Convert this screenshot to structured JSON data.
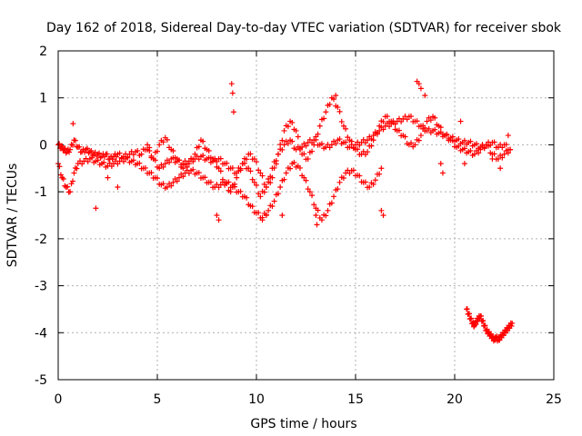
{
  "chart_data": {
    "type": "scatter",
    "title": "Day 162 of 2018, Sidereal Day-to-day VTEC variation (SDTVAR) for receiver sbok",
    "xlabel": "GPS time / hours",
    "ylabel": "SDTVAR / TECUs",
    "xlim": [
      0,
      25
    ],
    "ylim": [
      -5,
      2
    ],
    "xticks": [
      0,
      5,
      10,
      15,
      20,
      25
    ],
    "yticks": [
      -5,
      -4,
      -3,
      -2,
      -1,
      0,
      1,
      2
    ],
    "grid": true,
    "marker": "+",
    "color": "#ff0000",
    "series": [
      {
        "name": "main",
        "x": [
          0.0,
          0.15,
          0.3,
          0.45,
          0.6,
          0.8,
          1.0,
          1.2,
          1.4,
          1.6,
          1.8,
          2.0,
          2.2,
          2.4,
          2.6,
          2.8,
          3.0,
          3.3,
          3.6,
          3.9,
          4.2,
          4.5,
          4.8,
          5.1,
          5.4,
          5.7,
          6.0,
          6.3,
          6.6,
          6.9,
          7.2,
          7.5,
          7.8,
          8.1,
          8.4,
          8.7,
          9.0,
          9.3,
          9.6,
          9.9,
          10.2,
          10.5,
          10.8,
          11.1,
          11.4,
          11.7,
          12.0,
          12.3,
          12.6,
          12.9,
          13.2,
          13.5,
          13.8,
          14.1,
          14.4,
          14.7,
          15.0,
          15.3,
          15.6,
          15.9,
          16.2,
          16.5,
          16.8,
          17.1,
          17.4,
          17.7,
          18.0,
          18.3,
          18.6,
          18.9,
          19.2,
          19.5,
          19.8,
          20.1,
          20.4,
          20.7,
          21.0,
          21.3,
          21.6,
          21.9,
          22.2,
          22.5,
          22.8
        ],
        "y": [
          0.0,
          -0.05,
          -0.1,
          -0.15,
          -0.1,
          0.1,
          -0.05,
          -0.15,
          -0.1,
          -0.15,
          -0.2,
          -0.2,
          -0.25,
          -0.2,
          -0.3,
          -0.25,
          -0.2,
          -0.25,
          -0.2,
          -0.15,
          -0.2,
          0.0,
          -0.3,
          -0.5,
          -0.4,
          -0.3,
          -0.35,
          -0.4,
          -0.35,
          -0.3,
          -0.25,
          -0.3,
          -0.35,
          -0.3,
          -0.4,
          -0.5,
          -0.6,
          -0.4,
          -0.5,
          -0.8,
          -1.1,
          -0.9,
          -0.5,
          -0.2,
          0.0,
          0.1,
          -0.1,
          -0.05,
          0.05,
          0.1,
          0.0,
          -0.05,
          0.0,
          0.1,
          0.05,
          -0.05,
          0.0,
          0.05,
          0.1,
          0.2,
          0.3,
          0.4,
          0.45,
          0.5,
          0.55,
          0.6,
          0.5,
          0.4,
          0.3,
          0.3,
          0.25,
          0.2,
          0.15,
          0.1,
          0.05,
          0.05,
          0.0,
          -0.05,
          0.0,
          0.05,
          -0.05,
          0.0,
          -0.1
        ]
      },
      {
        "name": "lower-trace",
        "x": [
          0.0,
          0.2,
          0.4,
          0.6,
          0.8,
          1.0,
          1.3,
          1.6,
          1.9,
          2.2,
          2.5,
          2.8,
          3.1,
          3.4,
          3.7,
          4.0,
          4.3,
          4.6,
          4.9,
          5.2,
          5.5,
          5.8,
          6.1,
          6.4,
          6.7,
          7.0,
          7.3,
          7.6,
          7.9,
          8.2,
          8.5,
          8.8,
          9.1,
          9.4,
          9.7,
          10.0,
          10.3,
          10.6,
          10.9,
          11.2,
          11.5,
          11.8,
          12.1,
          12.4,
          12.7,
          13.0,
          13.3,
          13.6,
          13.9,
          14.2,
          14.5,
          14.8,
          15.1,
          15.4,
          15.7,
          16.0,
          16.3
        ],
        "y": [
          -0.4,
          -0.7,
          -0.9,
          -1.0,
          -0.6,
          -0.4,
          -0.35,
          -0.3,
          -0.35,
          -0.4,
          -0.45,
          -0.4,
          -0.35,
          -0.3,
          -0.35,
          -0.4,
          -0.5,
          -0.6,
          -0.7,
          -0.85,
          -0.9,
          -0.8,
          -0.7,
          -0.6,
          -0.55,
          -0.6,
          -0.7,
          -0.8,
          -0.9,
          -0.85,
          -0.8,
          -0.9,
          -1.0,
          -1.1,
          -1.3,
          -1.45,
          -1.55,
          -1.4,
          -1.2,
          -0.9,
          -0.6,
          -0.4,
          -0.45,
          -0.7,
          -1.0,
          -1.35,
          -1.6,
          -1.4,
          -1.1,
          -0.8,
          -0.6,
          -0.55,
          -0.65,
          -0.8,
          -0.9,
          -0.75,
          -0.5
        ]
      },
      {
        "name": "wave-trace",
        "x": [
          4.5,
          4.8,
          5.1,
          5.4,
          5.7,
          6.0,
          6.3,
          6.6,
          6.9,
          7.2,
          7.5,
          7.8,
          8.1,
          8.4,
          8.7,
          9.0,
          9.3,
          9.6,
          9.9,
          10.2,
          10.5,
          10.8,
          11.1,
          11.4,
          11.7,
          12.0,
          12.3,
          12.6,
          12.9,
          13.2,
          13.5,
          13.8,
          14.1,
          14.4,
          14.7,
          15.0,
          15.3,
          15.6,
          15.9,
          16.2,
          16.5,
          16.8,
          17.1,
          17.4,
          17.7,
          18.0,
          18.3,
          18.6,
          18.9,
          19.2,
          19.5,
          19.8,
          20.1,
          20.4,
          20.7,
          21.0,
          21.3,
          21.6,
          21.9,
          22.2,
          22.5,
          22.8
        ],
        "y": [
          -0.1,
          -0.3,
          0.0,
          0.15,
          -0.1,
          -0.3,
          -0.5,
          -0.4,
          -0.2,
          0.1,
          -0.1,
          -0.3,
          -0.5,
          -0.8,
          -1.0,
          -0.7,
          -0.4,
          -0.2,
          -0.3,
          -0.6,
          -0.9,
          -0.7,
          -0.2,
          0.3,
          0.5,
          0.3,
          -0.2,
          -0.3,
          0.0,
          0.4,
          0.7,
          1.0,
          0.8,
          0.4,
          0.1,
          -0.1,
          -0.2,
          -0.15,
          0.1,
          0.4,
          0.6,
          0.5,
          0.3,
          0.2,
          0.0,
          0.0,
          0.2,
          0.5,
          0.6,
          0.4,
          0.2,
          0.1,
          -0.05,
          -0.1,
          -0.15,
          -0.2,
          -0.1,
          0.0,
          -0.2,
          -0.3,
          -0.2,
          -0.1
        ]
      },
      {
        "name": "spikes",
        "x": [
          0.75,
          1.9,
          2.5,
          3.0,
          8.0,
          8.1,
          8.75,
          8.8,
          8.85,
          10.3,
          10.5,
          11.3,
          13.0,
          13.05,
          14.0,
          16.3,
          16.4,
          18.1,
          18.2,
          18.3,
          18.5,
          19.3,
          19.4,
          20.3,
          20.5,
          21.9,
          22.3,
          22.7
        ],
        "y": [
          0.45,
          -1.35,
          -0.7,
          -0.9,
          -1.5,
          -1.6,
          1.3,
          1.1,
          0.7,
          -1.6,
          -1.5,
          -1.5,
          -1.5,
          -1.7,
          1.05,
          -1.4,
          -1.5,
          1.35,
          1.3,
          1.2,
          1.05,
          -0.4,
          -0.6,
          0.5,
          -0.4,
          -0.3,
          -0.5,
          0.2
        ]
      },
      {
        "name": "offset-cluster",
        "x": [
          20.6,
          20.7,
          20.8,
          20.9,
          21.0,
          21.1,
          21.2,
          21.3,
          21.4,
          21.5,
          21.6,
          21.7,
          21.8,
          21.9,
          22.0,
          22.1,
          22.2,
          22.3,
          22.4,
          22.5,
          22.6,
          22.7,
          22.8,
          22.9
        ],
        "y": [
          -3.5,
          -3.6,
          -3.7,
          -3.8,
          -3.85,
          -3.75,
          -3.7,
          -3.65,
          -3.75,
          -3.85,
          -3.95,
          -4.0,
          -4.05,
          -4.1,
          -4.15,
          -4.1,
          -4.15,
          -4.1,
          -4.05,
          -4.0,
          -3.95,
          -3.9,
          -3.85,
          -3.8
        ]
      }
    ]
  }
}
